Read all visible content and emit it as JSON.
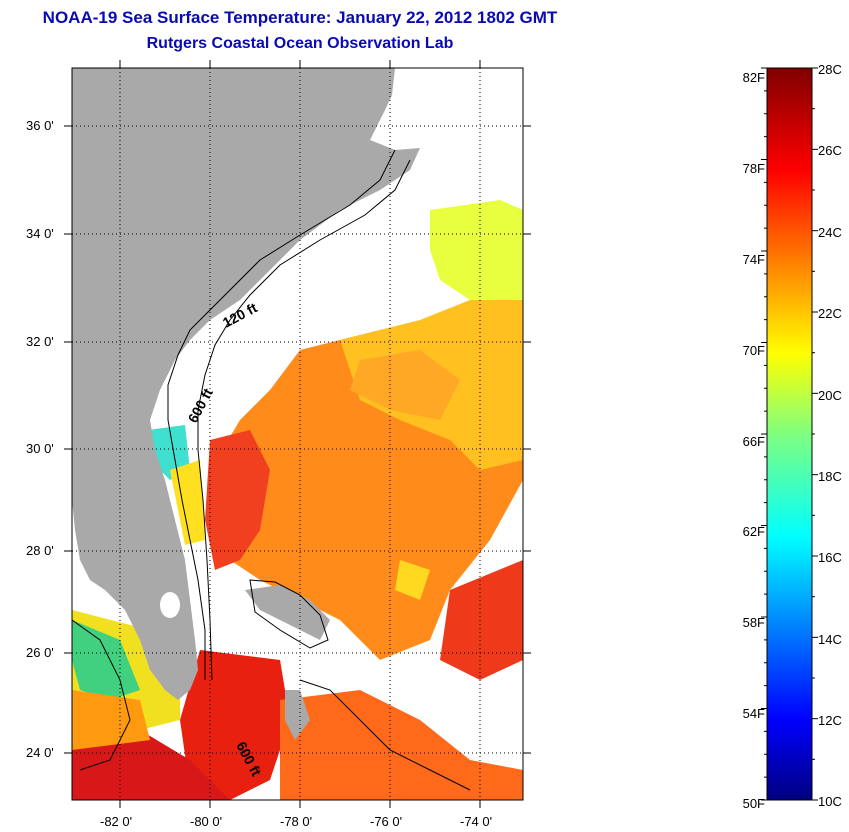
{
  "title": {
    "line1": "NOAA-19 Sea Surface Temperature:  January 22, 2012 1802 GMT",
    "line2": "Rutgers Coastal Ocean Observation Lab"
  },
  "map": {
    "lat_labels": [
      "36 0'",
      "34 0'",
      "32 0'",
      "30 0'",
      "28 0'",
      "26 0'",
      "24 0'"
    ],
    "lon_labels": [
      "-82 0'",
      "-80 0'",
      "-78 0'",
      "-76 0'",
      "-74 0'"
    ],
    "contour_labels": [
      "120 ft",
      "600 ft",
      "600 ft"
    ],
    "colors": {
      "land": "#a9a9a9",
      "no_data": "#ffffff",
      "contour": "#000000"
    }
  },
  "colorbar": {
    "fahrenheit_labels": [
      "82F",
      "78F",
      "74F",
      "70F",
      "66F",
      "62F",
      "58F",
      "54F",
      "50F"
    ],
    "celsius_labels": [
      "28C",
      "26C",
      "24C",
      "22C",
      "20C",
      "18C",
      "16C",
      "14C",
      "12C",
      "10C"
    ],
    "range_c": [
      10,
      28
    ],
    "colormap": "jet"
  }
}
